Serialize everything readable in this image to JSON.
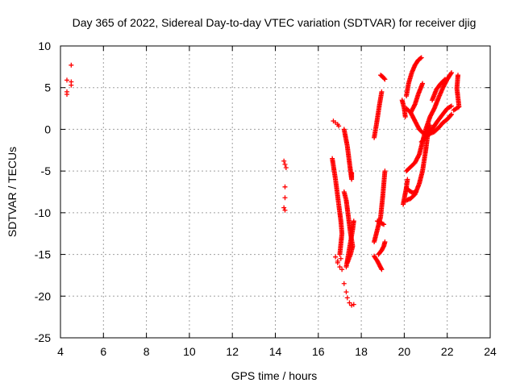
{
  "chart_data": {
    "type": "scatter",
    "title": "Day 365 of 2022, Sidereal Day-to-day VTEC variation (SDTVAR) for receiver djig",
    "xlabel": "GPS time / hours",
    "ylabel": "SDTVAR / TECUs",
    "xlim": [
      4,
      24
    ],
    "ylim": [
      -25,
      10
    ],
    "xticks": [
      4,
      6,
      8,
      10,
      12,
      14,
      16,
      18,
      20,
      22,
      24
    ],
    "yticks": [
      10,
      5,
      0,
      -5,
      -10,
      -15,
      -20,
      -25
    ],
    "xtick_labels": [
      "4",
      "6",
      "8",
      "10",
      "12",
      "14",
      "16",
      "18",
      "20",
      "22",
      "24"
    ],
    "ytick_labels": [
      "10",
      "5",
      "0",
      "-5",
      "-10",
      "-15",
      "-20",
      "-25"
    ],
    "grid": true,
    "marker": "+",
    "color": "#ff0000",
    "series": [
      {
        "name": "SDTVAR",
        "points": [
          [
            4.3,
            5.9
          ],
          [
            4.3,
            4.5
          ],
          [
            4.3,
            4.2
          ],
          [
            4.5,
            7.7
          ],
          [
            4.5,
            5.7
          ],
          [
            4.5,
            5.3
          ],
          [
            14.4,
            -3.8
          ],
          [
            14.45,
            -4.2
          ],
          [
            14.5,
            -4.6
          ],
          [
            14.45,
            -6.9
          ],
          [
            14.45,
            -8.2
          ],
          [
            14.4,
            -9.4
          ],
          [
            14.45,
            -9.7
          ],
          [
            16.7,
            1.0
          ],
          [
            16.8,
            0.8
          ],
          [
            16.9,
            0.6
          ],
          [
            16.95,
            0.4
          ],
          [
            16.8,
            -15.3
          ],
          [
            16.9,
            -16.0
          ],
          [
            17.0,
            -16.5
          ],
          [
            17.1,
            -16.8
          ],
          [
            16.9,
            -15.8
          ],
          [
            17.05,
            -15.5
          ],
          [
            17.2,
            -18.5
          ],
          [
            17.3,
            -19.5
          ],
          [
            17.35,
            -20.2
          ],
          [
            17.45,
            -20.8
          ],
          [
            17.55,
            -21.1
          ],
          [
            17.65,
            -21.0
          ]
        ],
        "segments": [
          [
            [
              16.65,
              -3.5
            ],
            [
              16.8,
              -6.0
            ],
            [
              16.95,
              -9.0
            ],
            [
              17.05,
              -11.0
            ],
            [
              17.1,
              -12.5
            ],
            [
              17.0,
              -15.0
            ]
          ],
          [
            [
              17.2,
              0.0
            ],
            [
              17.35,
              -2.0
            ],
            [
              17.45,
              -4.0
            ],
            [
              17.55,
              -6.0
            ],
            [
              17.55,
              -5.2
            ]
          ],
          [
            [
              17.2,
              -7.5
            ],
            [
              17.3,
              -8.5
            ],
            [
              17.4,
              -10.5
            ],
            [
              17.5,
              -12.5
            ],
            [
              17.6,
              -14.0
            ],
            [
              17.5,
              -15.0
            ],
            [
              17.35,
              -16.0
            ]
          ],
          [
            [
              17.3,
              -16.5
            ],
            [
              17.4,
              -15.0
            ],
            [
              17.5,
              -13.5
            ],
            [
              17.6,
              -12.0
            ],
            [
              17.65,
              -11.0
            ]
          ],
          [
            [
              18.6,
              -1.0
            ],
            [
              18.7,
              0.5
            ],
            [
              18.85,
              3.0
            ],
            [
              18.95,
              4.5
            ]
          ],
          [
            [
              18.9,
              6.5
            ],
            [
              19.0,
              6.3
            ],
            [
              19.1,
              6.0
            ]
          ],
          [
            [
              18.6,
              -15.2
            ],
            [
              18.75,
              -15.8
            ],
            [
              18.85,
              -16.3
            ],
            [
              18.95,
              -16.8
            ]
          ],
          [
            [
              18.6,
              -13.5
            ],
            [
              18.75,
              -12.0
            ],
            [
              18.9,
              -10.5
            ],
            [
              19.0,
              -8.0
            ],
            [
              19.1,
              -5.0
            ]
          ],
          [
            [
              18.8,
              -15.0
            ],
            [
              18.95,
              -14.5
            ],
            [
              19.05,
              -14.0
            ],
            [
              19.1,
              -13.5
            ]
          ],
          [
            [
              18.75,
              -11.0
            ],
            [
              18.9,
              -11.2
            ],
            [
              19.05,
              -11.4
            ]
          ],
          [
            [
              19.95,
              -9.0
            ],
            [
              20.0,
              -8.3
            ],
            [
              20.1,
              -7.0
            ],
            [
              20.15,
              -6.0
            ]
          ],
          [
            [
              19.9,
              3.5
            ],
            [
              20.0,
              2.5
            ],
            [
              20.05,
              1.5
            ]
          ],
          [
            [
              20.1,
              -5.0
            ],
            [
              20.3,
              -4.5
            ],
            [
              20.5,
              -4.0
            ],
            [
              20.7,
              -3.0
            ],
            [
              20.85,
              -1.5
            ],
            [
              21.0,
              0.0
            ],
            [
              21.2,
              1.5
            ],
            [
              21.4,
              2.5
            ],
            [
              21.6,
              3.8
            ],
            [
              21.8,
              5.0
            ],
            [
              22.0,
              6.0
            ],
            [
              22.2,
              6.8
            ]
          ],
          [
            [
              20.1,
              2.5
            ],
            [
              20.3,
              2.0
            ],
            [
              20.5,
              1.0
            ],
            [
              20.7,
              0.0
            ],
            [
              20.9,
              -0.5
            ],
            [
              21.1,
              -0.5
            ],
            [
              21.3,
              0.0
            ],
            [
              21.5,
              0.8
            ],
            [
              21.7,
              1.5
            ],
            [
              22.0,
              2.5
            ],
            [
              22.2,
              2.8
            ]
          ],
          [
            [
              20.1,
              -7.0
            ],
            [
              20.25,
              -7.4
            ],
            [
              20.4,
              -7.6
            ],
            [
              20.55,
              -7.5
            ]
          ],
          [
            [
              20.1,
              -8.5
            ],
            [
              20.3,
              -8.3
            ],
            [
              20.5,
              -7.8
            ],
            [
              20.7,
              -6.5
            ],
            [
              20.85,
              -5.0
            ],
            [
              21.0,
              -2.5
            ],
            [
              21.1,
              -0.5
            ],
            [
              21.2,
              0.5
            ]
          ],
          [
            [
              20.1,
              4.0
            ],
            [
              20.2,
              5.5
            ],
            [
              20.35,
              6.8
            ],
            [
              20.5,
              7.7
            ],
            [
              20.65,
              8.3
            ],
            [
              20.8,
              8.6
            ]
          ],
          [
            [
              20.3,
              2.0
            ],
            [
              20.5,
              3.0
            ],
            [
              20.65,
              4.2
            ],
            [
              20.85,
              5.5
            ]
          ],
          [
            [
              20.8,
              -1.5
            ],
            [
              21.0,
              -1.0
            ],
            [
              21.2,
              -0.5
            ],
            [
              21.4,
              -0.3
            ],
            [
              21.6,
              0.2
            ],
            [
              21.8,
              0.8
            ],
            [
              22.0,
              1.2
            ],
            [
              22.2,
              1.8
            ]
          ],
          [
            [
              21.3,
              3.5
            ],
            [
              21.5,
              4.8
            ],
            [
              21.7,
              5.5
            ],
            [
              21.9,
              6.0
            ]
          ],
          [
            [
              22.5,
              6.5
            ],
            [
              22.45,
              4.9
            ],
            [
              22.55,
              2.7
            ],
            [
              22.3,
              2.3
            ]
          ]
        ]
      }
    ]
  }
}
